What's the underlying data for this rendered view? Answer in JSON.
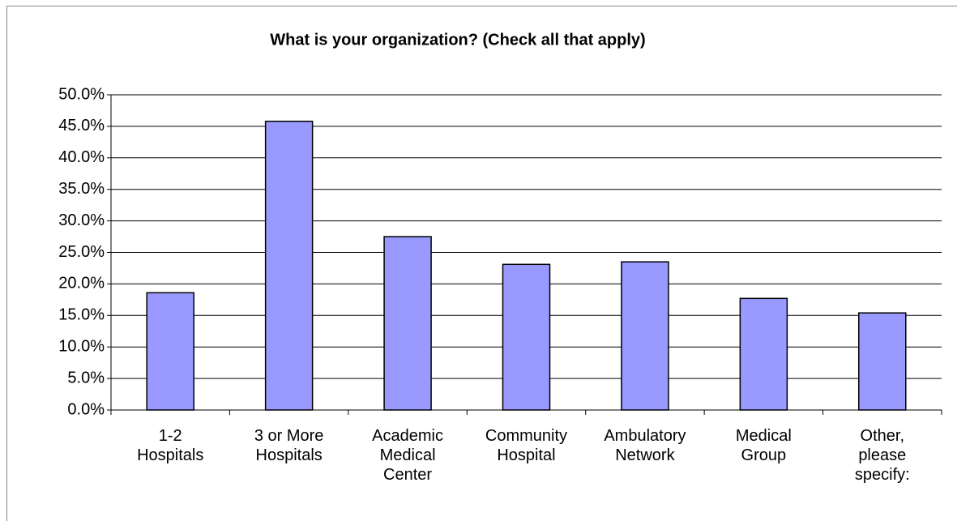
{
  "chart_data": {
    "type": "bar",
    "title": "What is your organization? (Check all that apply)",
    "categories": [
      "1-2 Hospitals",
      "3 or More Hospitals",
      "Academic Medical Center",
      "Community Hospital",
      "Ambulatory Network",
      "Medical Group",
      "Other, please specify:"
    ],
    "values": [
      18.6,
      45.8,
      27.5,
      23.1,
      23.5,
      17.7,
      15.4
    ],
    "color": "#9999ff",
    "ylim": [
      0,
      50
    ],
    "yticks": [
      {
        "value": 0,
        "label": "0.0%"
      },
      {
        "value": 5,
        "label": "5.0%"
      },
      {
        "value": 10,
        "label": "10.0%"
      },
      {
        "value": 15,
        "label": "15.0%"
      },
      {
        "value": 20,
        "label": "20.0%"
      },
      {
        "value": 25,
        "label": "25.0%"
      },
      {
        "value": 30,
        "label": "30.0%"
      },
      {
        "value": 35,
        "label": "35.0%"
      },
      {
        "value": 40,
        "label": "40.0%"
      },
      {
        "value": 45,
        "label": "45.0%"
      },
      {
        "value": 50,
        "label": "50.0%"
      }
    ],
    "grid": true
  }
}
